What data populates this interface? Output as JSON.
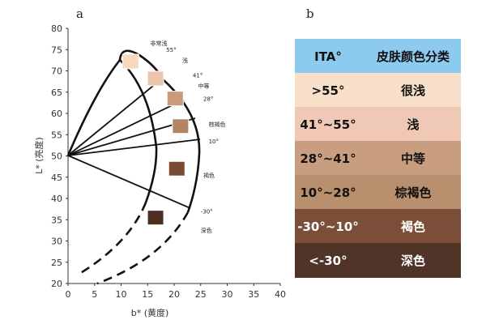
{
  "panel_a": {
    "letter": "a",
    "x_axis_title": "b* (黄度)",
    "y_axis_title": "L* (亮度)",
    "x_ticks": [
      0,
      5,
      10,
      15,
      20,
      25,
      30,
      35,
      40
    ],
    "y_ticks": [
      20,
      25,
      30,
      35,
      40,
      45,
      50,
      55,
      60,
      65,
      70,
      75,
      80
    ],
    "xlim": [
      0,
      40
    ],
    "ylim": [
      20,
      80
    ],
    "origin": {
      "b": 0,
      "L": 50
    },
    "angle_labels": [
      {
        "text": "55°",
        "b": 18.5,
        "L": 74.5
      },
      {
        "text": "41°",
        "b": 23.5,
        "L": 68.5
      },
      {
        "text": "28°",
        "b": 25.5,
        "L": 63.0
      },
      {
        "text": "10°",
        "b": 26.5,
        "L": 53.0
      },
      {
        "text": "-30°",
        "b": 25.0,
        "L": 36.5
      }
    ],
    "zone_labels": [
      {
        "text": "非常浅",
        "b": 15.5,
        "L": 76.0
      },
      {
        "text": "浅",
        "b": 21.5,
        "L": 72.0
      },
      {
        "text": "中等",
        "b": 24.5,
        "L": 66.0
      },
      {
        "text": "棕褐色",
        "b": 26.5,
        "L": 57.0
      },
      {
        "text": "褐色",
        "b": 25.5,
        "L": 45.0
      },
      {
        "text": "深色",
        "b": 25.0,
        "L": 32.0
      }
    ],
    "swatches": [
      {
        "b": 11.8,
        "L": 72.2,
        "color": "#f6d9bd"
      },
      {
        "b": 16.5,
        "L": 68.2,
        "color": "#efc4ad"
      },
      {
        "b": 20.2,
        "L": 63.5,
        "color": "#c99b7c"
      },
      {
        "b": 21.2,
        "L": 57.0,
        "color": "#b38566"
      },
      {
        "b": 20.5,
        "L": 47.0,
        "color": "#7b4a33"
      },
      {
        "b": 16.5,
        "L": 35.5,
        "color": "#4d2f22"
      }
    ]
  },
  "panel_b": {
    "letter": "b",
    "header": {
      "ita": "ITA°",
      "category": "皮肤颜色分类",
      "bg": "#8ccbee"
    },
    "rows": [
      {
        "range": ">55°",
        "category": "很浅",
        "bg": "#f8dfc9",
        "text_color": "#111111"
      },
      {
        "range": "41°~55°",
        "category": "浅",
        "bg": "#efc9b5",
        "text_color": "#111111"
      },
      {
        "range": "28°~41°",
        "category": "中等",
        "bg": "#c99e80",
        "text_color": "#111111"
      },
      {
        "range": "10°~28°",
        "category": "棕褐色",
        "bg": "#b8906d",
        "text_color": "#111111"
      },
      {
        "range": "-30°~10°",
        "category": "褐色",
        "bg": "#7a4e38",
        "text_color": "#ffffff"
      },
      {
        "range": "<-30°",
        "category": "深色",
        "bg": "#4f3427",
        "text_color": "#ffffff"
      }
    ]
  }
}
